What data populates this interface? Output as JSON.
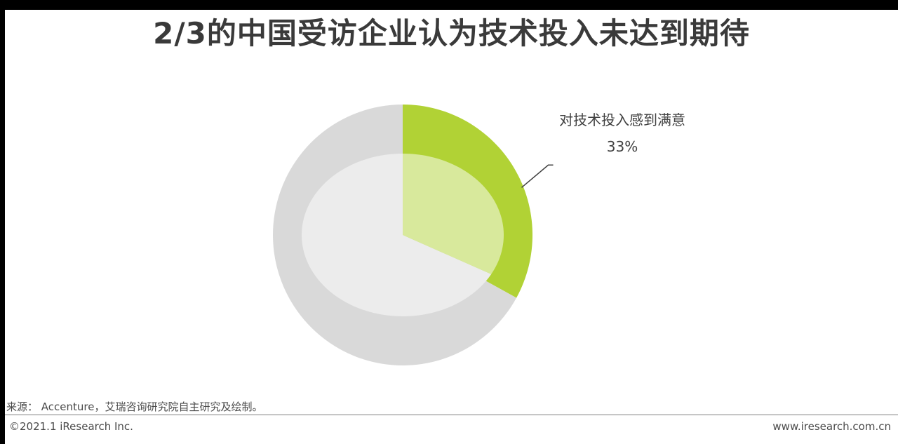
{
  "chart_data": {
    "type": "pie",
    "title": "2/3的中国受访企业认为技术投入未达到期待",
    "slices": [
      {
        "label": "对技术投入感到满意",
        "value": 33,
        "display": "33%",
        "color": "#b1d235",
        "inner_color": "#d8e99c"
      },
      {
        "label": "",
        "value": 67,
        "color": "#d9d9d9",
        "inner_color": "#ececec"
      }
    ],
    "legend": "none"
  },
  "footer": {
    "source": "来源： Accenture，艾瑞咨询研究院自主研究及绘制。",
    "copyright": "©2021.1 iResearch Inc.",
    "website": "www.iresearch.com.cn"
  }
}
